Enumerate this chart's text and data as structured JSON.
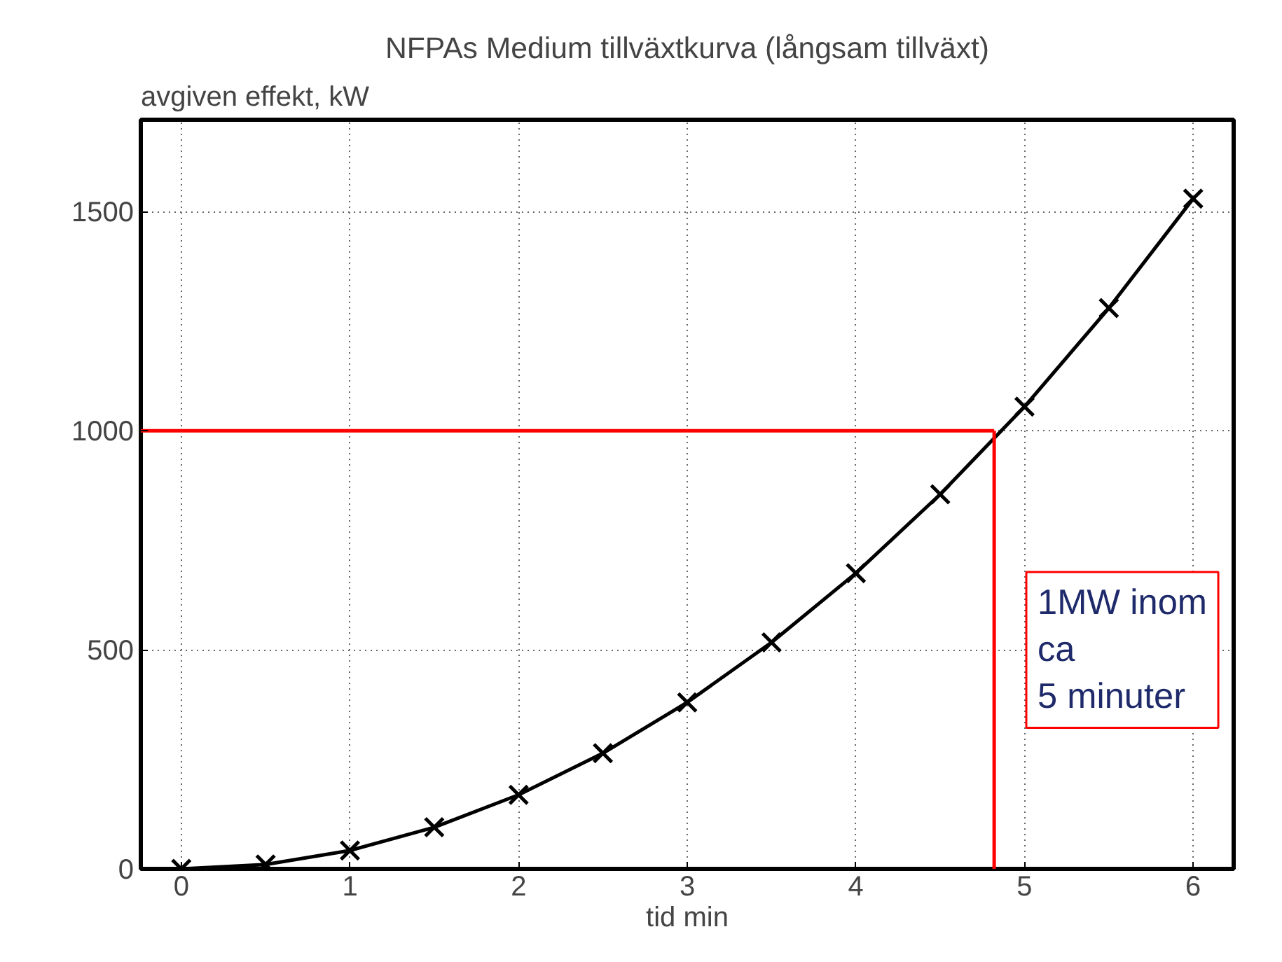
{
  "chart_data": {
    "type": "line",
    "title": "NFPAs Medium tillväxtkurva (långsam tillväxt)",
    "ylabel": "avgiven effekt, kW",
    "xlabel": "tid min",
    "x": [
      0,
      0.5,
      1,
      1.5,
      2,
      2.5,
      3,
      3.5,
      4,
      4.5,
      5,
      5.5,
      6
    ],
    "series": [
      {
        "color": "#000000",
        "values": [
          0,
          10,
          42,
          95,
          169,
          264,
          380,
          517,
          675,
          855,
          1055,
          1280,
          1530
        ]
      }
    ],
    "xlim": [
      -0.24,
      6.24
    ],
    "ylim": [
      0,
      1710
    ],
    "xticks": [
      0,
      1,
      2,
      3,
      4,
      5,
      6
    ],
    "yticks": [
      0,
      500,
      1000,
      1500
    ],
    "grid": true,
    "marker": "cross",
    "line_style": "solid",
    "ref_lines": [
      {
        "axis": "y",
        "value": 1000,
        "label": null,
        "color": "#ff0000"
      },
      {
        "axis": "x",
        "value": 4.82,
        "label": null,
        "color": "#ff0000"
      }
    ],
    "annotations": [
      "1MW inom\nca\n5 minuter"
    ]
  }
}
